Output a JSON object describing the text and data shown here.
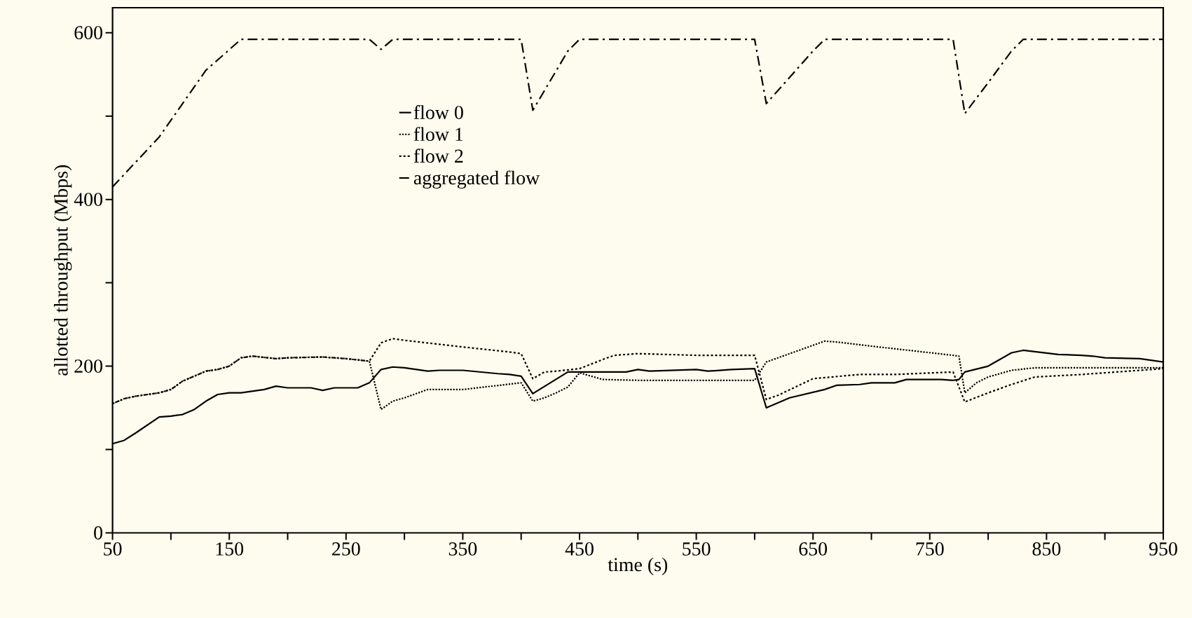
{
  "chart_data": {
    "type": "line",
    "xlabel": "time (s)",
    "ylabel": "allotted throughput (Mbps)",
    "xlim": [
      50,
      950
    ],
    "ylim": [
      0,
      630
    ],
    "xticks": [
      50,
      {
        "value": 100,
        "label": null
      },
      150,
      {
        "value": 200,
        "label": null
      },
      250,
      {
        "value": 300,
        "label": null
      },
      350,
      {
        "value": 400,
        "label": null
      },
      450,
      {
        "value": 500,
        "label": null
      },
      550,
      {
        "value": 600,
        "label": null
      },
      650,
      {
        "value": 700,
        "label": null
      },
      750,
      {
        "value": 800,
        "label": null
      },
      850,
      {
        "value": 900,
        "label": null
      },
      950
    ],
    "yticks": [
      0,
      {
        "value": 100,
        "label": null
      },
      200,
      {
        "value": 300,
        "label": null
      },
      400,
      {
        "value": 500,
        "label": null
      },
      600
    ],
    "grid": false,
    "legend": "top left",
    "marker": "none",
    "series": [
      {
        "name": "flow 0",
        "color": "#000000",
        "line_style": "solid",
        "x": [
          50,
          60,
          70,
          90,
          100,
          110,
          120,
          130,
          140,
          150,
          160,
          180,
          190,
          200,
          220,
          230,
          240,
          260,
          270,
          280,
          290,
          300,
          320,
          330,
          350,
          380,
          390,
          400,
          410,
          440,
          450,
          490,
          500,
          510,
          550,
          560,
          580,
          600,
          610,
          630,
          660,
          670,
          690,
          700,
          720,
          730,
          760,
          770,
          775,
          780,
          800,
          810,
          820,
          830,
          860,
          880,
          890,
          900,
          930,
          950
        ],
        "values": [
          107,
          111,
          120,
          139,
          140,
          142,
          148,
          158,
          166,
          168,
          168,
          172,
          176,
          174,
          174,
          171,
          174,
          174,
          180,
          196,
          199,
          198,
          194,
          195,
          195,
          191,
          190,
          188,
          167,
          193,
          193,
          193,
          196,
          194,
          196,
          194,
          196,
          197,
          150,
          162,
          172,
          177,
          178,
          180,
          180,
          184,
          184,
          183,
          184,
          193,
          200,
          208,
          216,
          219,
          214,
          213,
          212,
          210,
          209,
          205
        ]
      },
      {
        "name": "flow 1",
        "color": "#000000",
        "line_style": "dotted",
        "x": [
          50,
          60,
          70,
          90,
          100,
          110,
          130,
          140,
          150,
          160,
          170,
          190,
          200,
          230,
          250,
          270,
          280,
          290,
          300,
          320,
          350,
          400,
          410,
          420,
          430,
          440,
          450,
          460,
          470,
          500,
          550,
          600,
          610,
          630,
          650,
          660,
          670,
          700,
          770,
          775,
          780,
          790,
          800,
          820,
          840,
          950
        ],
        "values": [
          155,
          161,
          164,
          168,
          172,
          182,
          194,
          196,
          200,
          210,
          212,
          209,
          210,
          211,
          209,
          206,
          148,
          158,
          162,
          172,
          172,
          180,
          158,
          162,
          168,
          175,
          192,
          188,
          184,
          183,
          183,
          183,
          205,
          215,
          225,
          230,
          229,
          224,
          213,
          212,
          168,
          180,
          187,
          195,
          198,
          198
        ]
      },
      {
        "name": "flow 2",
        "color": "#000000",
        "line_style": "dashed",
        "x": [
          50,
          60,
          70,
          90,
          100,
          110,
          130,
          140,
          150,
          160,
          170,
          190,
          200,
          230,
          250,
          270,
          280,
          290,
          300,
          350,
          390,
          400,
          410,
          420,
          430,
          450,
          470,
          480,
          500,
          550,
          600,
          610,
          620,
          650,
          690,
          720,
          770,
          780,
          800,
          820,
          840,
          880,
          950
        ],
        "values": [
          155,
          161,
          164,
          168,
          172,
          182,
          194,
          196,
          200,
          210,
          212,
          209,
          210,
          211,
          209,
          206,
          228,
          233,
          231,
          223,
          217,
          215,
          185,
          193,
          194,
          197,
          208,
          213,
          215,
          213,
          213,
          160,
          165,
          185,
          190,
          190,
          193,
          157,
          168,
          178,
          187,
          190,
          197
        ]
      },
      {
        "name": "aggregated flow",
        "color": "#000000",
        "line_style": "dashdot",
        "x": [
          50,
          60,
          70,
          90,
          110,
          130,
          160,
          270,
          280,
          290,
          400,
          410,
          440,
          450,
          600,
          610,
          650,
          660,
          770,
          780,
          800,
          820,
          830,
          950
        ],
        "values": [
          415,
          430,
          445,
          475,
          515,
          555,
          592,
          592,
          580,
          592,
          592,
          507,
          578,
          592,
          592,
          515,
          578,
          592,
          592,
          503,
          540,
          578,
          592,
          592
        ]
      }
    ]
  }
}
